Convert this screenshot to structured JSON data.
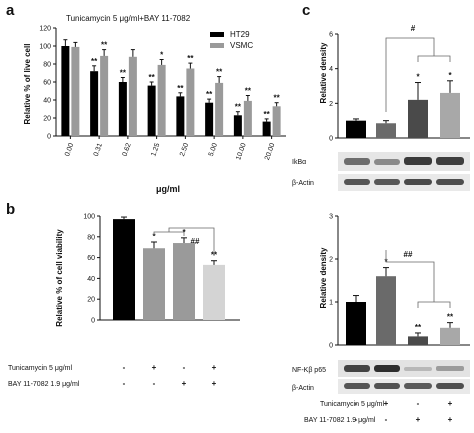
{
  "panel_a": {
    "letter": "a",
    "title": "Tunicamycin 5 μg/ml+BAY 11-7082",
    "ylabel": "Relative % of live cell",
    "xlabel": "μg/ml",
    "yticks": [
      "0",
      "20",
      "40",
      "60",
      "80",
      "100",
      "120"
    ],
    "legend": [
      {
        "name": "HT29",
        "color": "#000000"
      },
      {
        "name": "VSMC",
        "color": "#9a9a9a"
      }
    ],
    "categories": [
      "0.00",
      "0.31",
      "0.62",
      "1.25",
      "2.50",
      "5.00",
      "10.00",
      "20.00"
    ]
  },
  "panel_b": {
    "letter": "b",
    "ylabel": "Relative % of cell viability",
    "yticks": [
      "0",
      "20",
      "40",
      "60",
      "80",
      "100"
    ],
    "sig_label": "##",
    "conditions": [
      {
        "label": "Tunicamycin 5 μg/ml",
        "signs": [
          "-",
          "+",
          "-",
          "+"
        ]
      },
      {
        "label": "BAY 11-7082 1.9 μg/ml",
        "signs": [
          "-",
          "-",
          "+",
          "+"
        ]
      }
    ]
  },
  "panel_c": {
    "letter": "c",
    "top": {
      "ylabel": "Relative density",
      "yticks": [
        "0",
        "2",
        "4",
        "6"
      ],
      "sig_label": "#",
      "blot_labels": [
        "IkBα",
        "β-Actin"
      ]
    },
    "bottom": {
      "ylabel": "Relative density",
      "yticks": [
        "0",
        "1",
        "2",
        "3"
      ],
      "sig_label": "##",
      "blot_labels": [
        "NF-Kβ p65",
        "β-Actin"
      ]
    },
    "conditions": [
      {
        "label": "Tunicamycin 5 μg/ml",
        "signs": [
          "-",
          "+",
          "-",
          "+"
        ]
      },
      {
        "label": "BAY 11-7082 1.9 μg/ml",
        "signs": [
          "-",
          "-",
          "+",
          "+"
        ]
      }
    ]
  },
  "chart_data": [
    {
      "type": "bar",
      "title": "Tunicamycin 5 μg/ml+BAY 11-7082",
      "xlabel": "μg/ml",
      "ylabel": "Relative % of live cell",
      "ylim": [
        0,
        120
      ],
      "legend_position": "top-right",
      "categories": [
        "0.00",
        "0.31",
        "0.62",
        "1.25",
        "2.50",
        "5.00",
        "10.00",
        "20.00"
      ],
      "series": [
        {
          "name": "HT29",
          "color": "#000000",
          "values": [
            100,
            72,
            60,
            56,
            44,
            37,
            23,
            16
          ],
          "errors": [
            7,
            6,
            5,
            4,
            4,
            4,
            4,
            3
          ],
          "annotations": [
            "",
            "**",
            "**",
            "**",
            "**",
            "**",
            "**",
            "**"
          ]
        },
        {
          "name": "VSMC",
          "color": "#9a9a9a",
          "values": [
            99,
            89,
            88,
            79,
            75,
            59,
            39,
            33
          ],
          "errors": [
            5,
            7,
            8,
            6,
            6,
            7,
            6,
            4
          ],
          "annotations": [
            "",
            "**",
            "",
            "*",
            "**",
            "**",
            "**",
            "**"
          ]
        }
      ]
    },
    {
      "type": "bar",
      "ylabel": "Relative % of cell viability",
      "ylim": [
        0,
        100
      ],
      "values": [
        97,
        69,
        74,
        53
      ],
      "errors": [
        2,
        6,
        5,
        4
      ],
      "colors": [
        "#000000",
        "#9a9a9a",
        "#9a9a9a",
        "#d4d4d4"
      ],
      "annotations": [
        "",
        "*",
        "*",
        "**"
      ]
    },
    {
      "type": "bar",
      "ylabel": "Relative density",
      "ylim": [
        0,
        6
      ],
      "values": [
        1.0,
        0.85,
        2.2,
        2.6
      ],
      "errors": [
        0.1,
        0.15,
        1.0,
        0.7
      ],
      "colors": [
        "#000000",
        "#6a6a6a",
        "#4a4a4a",
        "#a8a8a8"
      ],
      "annotations": [
        "",
        "",
        "*",
        "*"
      ]
    },
    {
      "type": "bar",
      "ylabel": "Relative density",
      "ylim": [
        0,
        3
      ],
      "values": [
        1.0,
        1.6,
        0.2,
        0.4
      ],
      "errors": [
        0.15,
        0.2,
        0.08,
        0.12
      ],
      "colors": [
        "#000000",
        "#6a6a6a",
        "#4a4a4a",
        "#a8a8a8"
      ],
      "annotations": [
        "",
        "*",
        "**",
        "**"
      ]
    }
  ]
}
